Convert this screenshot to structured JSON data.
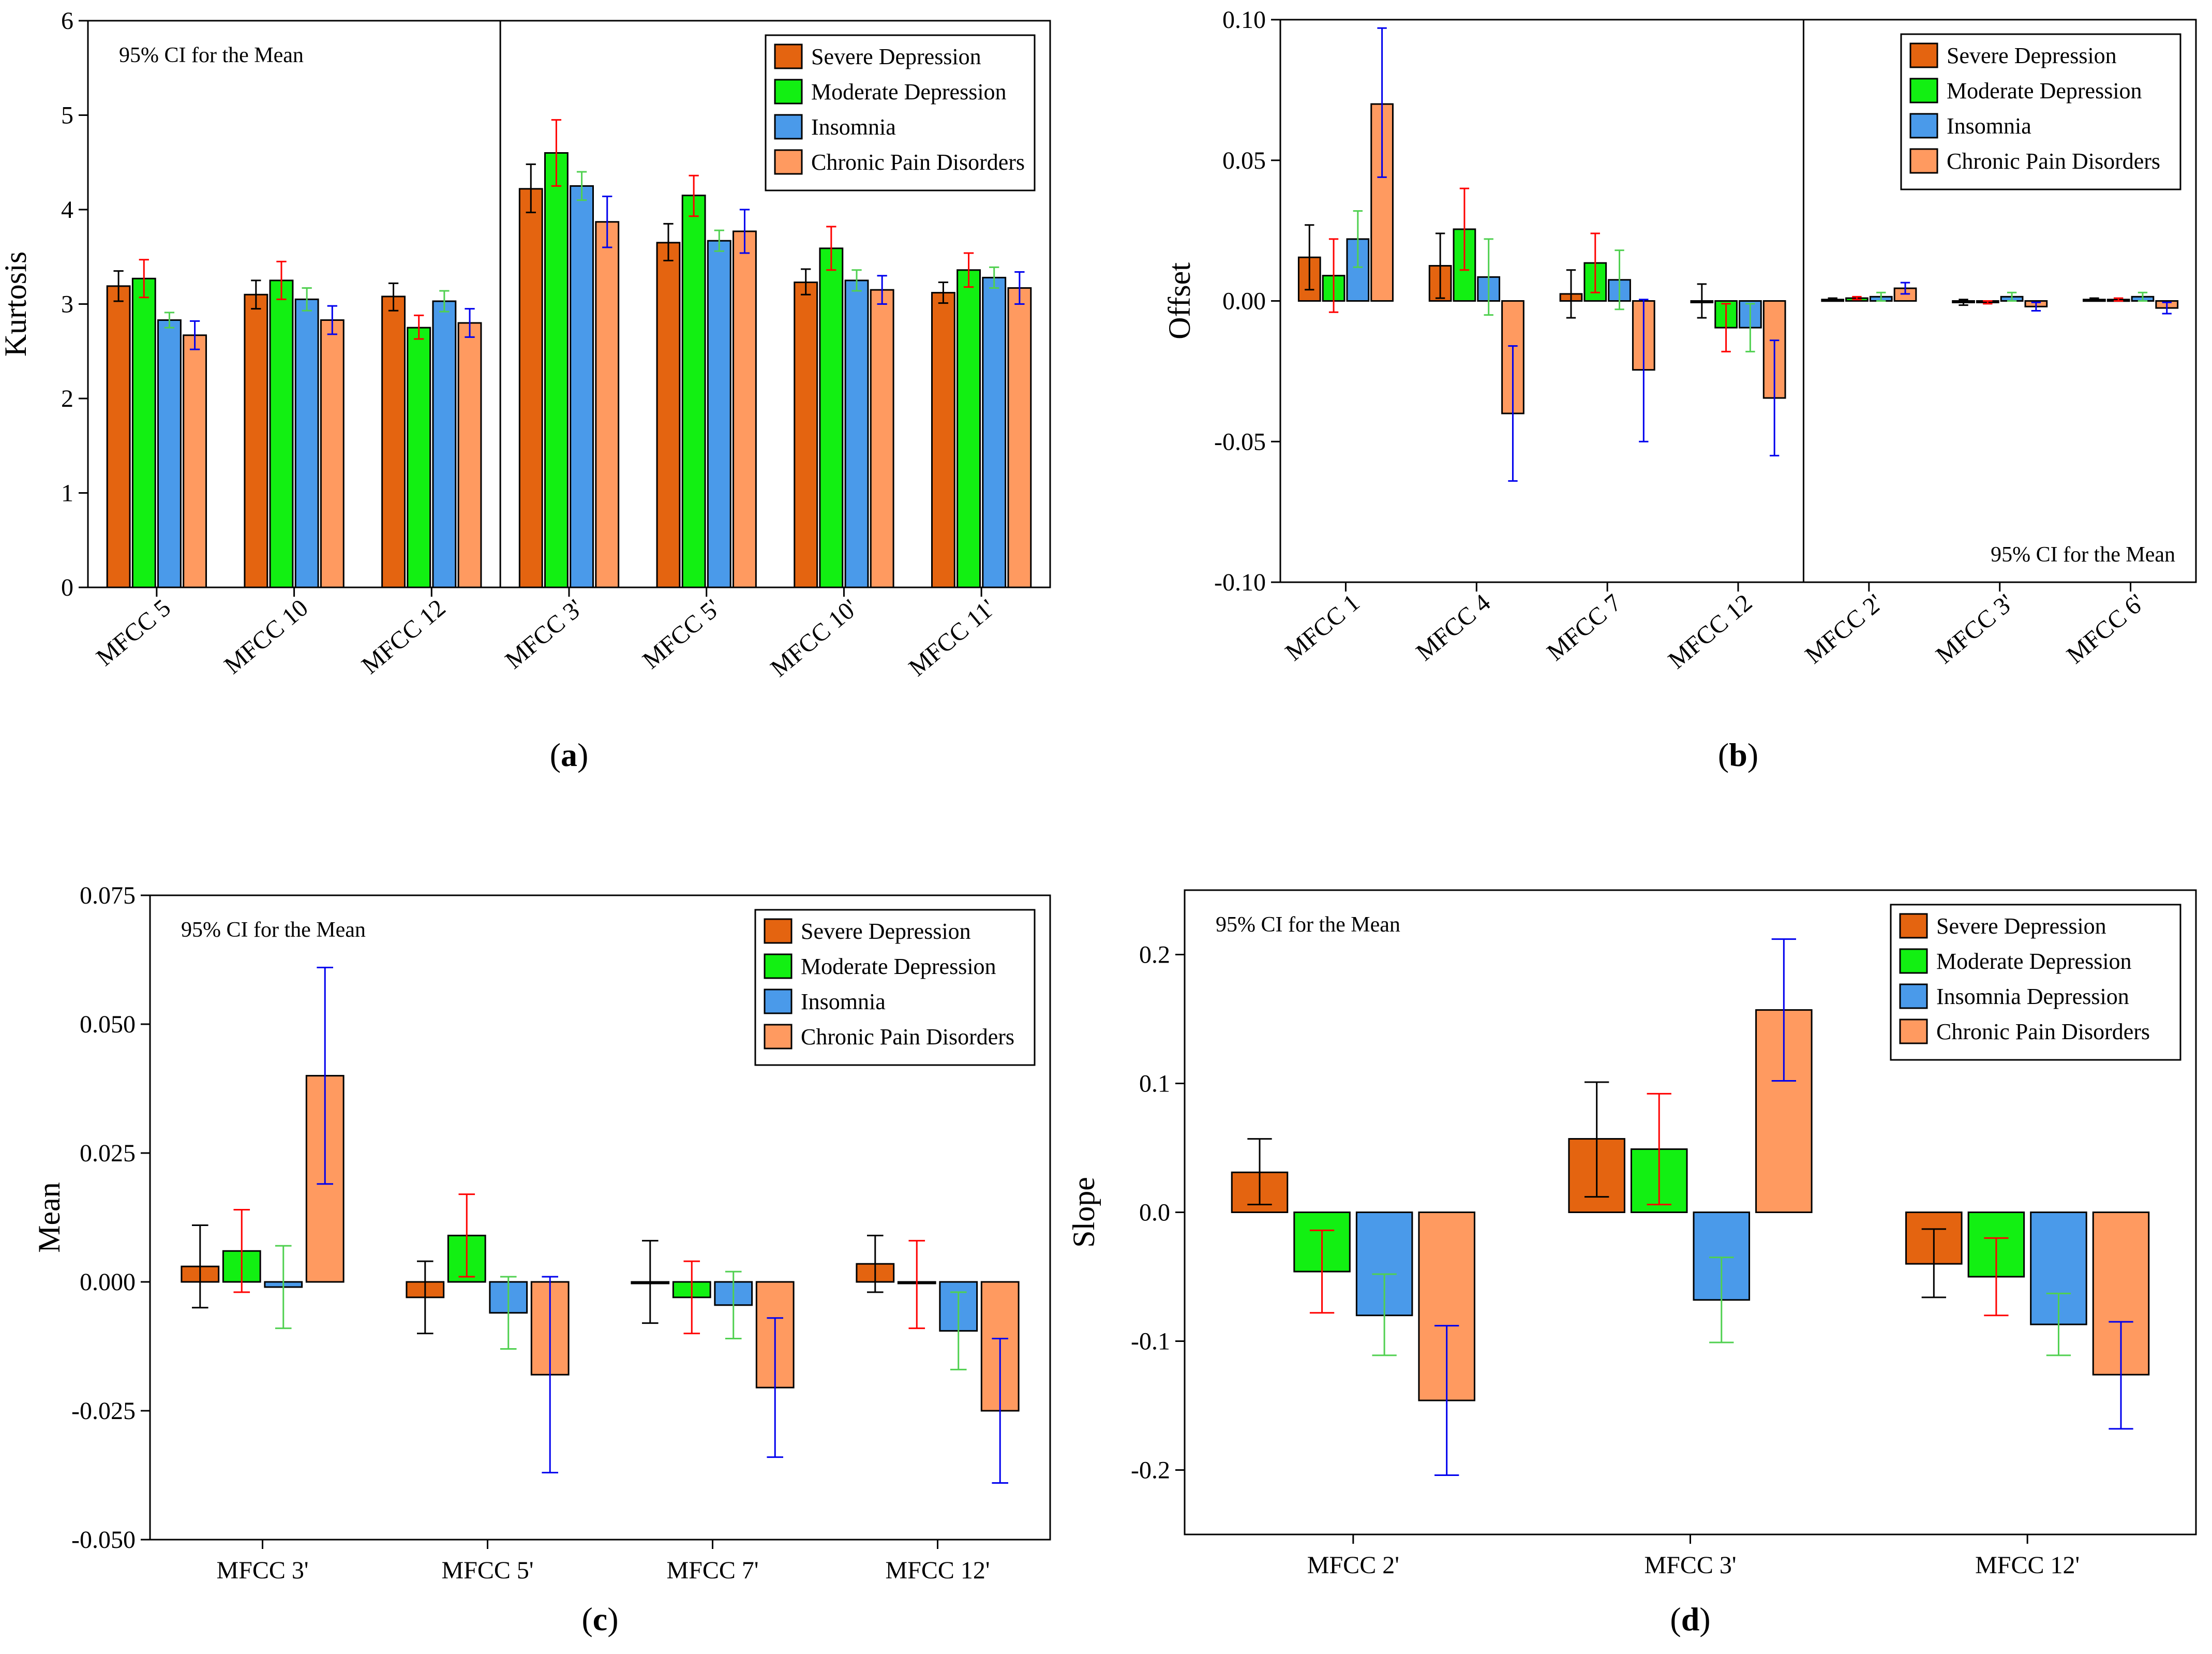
{
  "figure": {
    "panels": [
      {
        "id": "a",
        "label": "(a)",
        "label_letter": "a"
      },
      {
        "id": "b",
        "label": "(b)",
        "label_letter": "b"
      },
      {
        "id": "c",
        "label": "(c)",
        "label_letter": "c"
      },
      {
        "id": "d",
        "label": "(d)",
        "label_letter": "d"
      }
    ]
  },
  "chart_data": [
    {
      "id": "a",
      "type": "bar",
      "ylabel": "Kurtosis",
      "xlabel": "",
      "ylim": [
        0,
        6
      ],
      "yticks": [
        0,
        1,
        2,
        3,
        4,
        5,
        6
      ],
      "yticklabels": [
        "0",
        "1",
        "2",
        "3",
        "4",
        "5",
        "6"
      ],
      "note": "95% CI for the Mean",
      "legend_position": "top-right",
      "divider_after_category": 2,
      "categories": [
        "MFCC 5",
        "MFCC 10",
        "MFCC 12",
        "MFCC 3'",
        "MFCC 5'",
        "MFCC 10'",
        "MFCC 11'"
      ],
      "series": [
        {
          "name": "Severe Depression",
          "color": "#E46410",
          "err_color": "#000000",
          "values": [
            3.19,
            3.1,
            3.08,
            4.22,
            3.65,
            3.23,
            3.12
          ],
          "ci_low": [
            3.03,
            2.95,
            2.93,
            3.97,
            3.46,
            3.1,
            3.01
          ],
          "ci_high": [
            3.35,
            3.25,
            3.22,
            4.48,
            3.85,
            3.37,
            3.23
          ]
        },
        {
          "name": "Moderate Depression",
          "color": "#12F012",
          "err_color": "#FF0000",
          "values": [
            3.27,
            3.25,
            2.75,
            4.6,
            4.15,
            3.59,
            3.36
          ],
          "ci_low": [
            3.07,
            3.05,
            2.63,
            4.25,
            3.93,
            3.36,
            3.18
          ],
          "ci_high": [
            3.47,
            3.45,
            2.88,
            4.95,
            4.36,
            3.82,
            3.54
          ]
        },
        {
          "name": "Insomnia",
          "color": "#4A9AEA",
          "err_color": "#50D050",
          "values": [
            2.83,
            3.05,
            3.03,
            4.25,
            3.67,
            3.25,
            3.28
          ],
          "ci_low": [
            2.75,
            2.93,
            2.92,
            4.1,
            3.56,
            3.14,
            3.17
          ],
          "ci_high": [
            2.91,
            3.17,
            3.14,
            4.4,
            3.78,
            3.36,
            3.39
          ]
        },
        {
          "name": "Chronic Pain Disorders",
          "color": "#FF9A60",
          "err_color": "#0000EE",
          "values": [
            2.67,
            2.83,
            2.8,
            3.87,
            3.77,
            3.15,
            3.17
          ],
          "ci_low": [
            2.52,
            2.68,
            2.65,
            3.6,
            3.54,
            3.0,
            3.0
          ],
          "ci_high": [
            2.82,
            2.98,
            2.95,
            4.14,
            4.0,
            3.3,
            3.34
          ]
        }
      ]
    },
    {
      "id": "b",
      "type": "bar",
      "ylabel": "Offset",
      "xlabel": "",
      "ylim": [
        -0.1,
        0.1
      ],
      "yticks": [
        -0.1,
        -0.05,
        0.0,
        0.05,
        0.1
      ],
      "yticklabels": [
        "-0.10",
        "-0.05",
        "0.00",
        "0.05",
        "0.10"
      ],
      "note": "95% CI for the Mean",
      "legend_position": "top-right",
      "divider_after_category": 3,
      "categories": [
        "MFCC 1",
        "MFCC 4",
        "MFCC 7",
        "MFCC 12",
        "MFCC 2'",
        "MFCC 3'",
        "MFCC 6'"
      ],
      "series": [
        {
          "name": "Severe Depression",
          "color": "#E46410",
          "err_color": "#000000",
          "values": [
            0.0155,
            0.0125,
            0.0025,
            0.0,
            0.0005,
            -0.0005,
            0.0005
          ],
          "ci_low": [
            0.004,
            0.001,
            -0.006,
            -0.006,
            0.0,
            -0.0015,
            0.0
          ],
          "ci_high": [
            0.027,
            0.024,
            0.011,
            0.006,
            0.001,
            0.0005,
            0.001
          ]
        },
        {
          "name": "Moderate Depression",
          "color": "#12F012",
          "err_color": "#FF0000",
          "values": [
            0.009,
            0.0255,
            0.0135,
            -0.0095,
            0.001,
            -0.0005,
            0.0005
          ],
          "ci_low": [
            -0.004,
            0.011,
            0.003,
            -0.018,
            0.0005,
            -0.001,
            0.0
          ],
          "ci_high": [
            0.022,
            0.04,
            0.024,
            -0.001,
            0.0015,
            0.0,
            0.001
          ]
        },
        {
          "name": "Insomnia",
          "color": "#4A9AEA",
          "err_color": "#50D050",
          "values": [
            0.022,
            0.0085,
            0.0075,
            -0.0095,
            0.0015,
            0.0015,
            0.0015
          ],
          "ci_low": [
            0.012,
            -0.005,
            -0.003,
            -0.018,
            0.0,
            0.0,
            0.0
          ],
          "ci_high": [
            0.032,
            0.022,
            0.018,
            -0.001,
            0.003,
            0.003,
            0.003
          ]
        },
        {
          "name": "Chronic Pain Disorders",
          "color": "#FF9A60",
          "err_color": "#0000EE",
          "values": [
            0.07,
            -0.04,
            -0.0245,
            -0.0345,
            0.0045,
            -0.002,
            -0.0025
          ],
          "ci_low": [
            0.044,
            -0.064,
            -0.05,
            -0.055,
            0.0025,
            -0.0035,
            -0.0045
          ],
          "ci_high": [
            0.097,
            -0.016,
            0.0005,
            -0.014,
            0.0065,
            -0.0005,
            -0.0005
          ]
        }
      ]
    },
    {
      "id": "c",
      "type": "bar",
      "ylabel": "Mean",
      "xlabel": "",
      "ylim": [
        -0.05,
        0.075
      ],
      "yticks": [
        -0.05,
        -0.025,
        0.0,
        0.025,
        0.05,
        0.075
      ],
      "yticklabels": [
        "-0.050",
        "-0.025",
        "0.000",
        "0.025",
        "0.050",
        "0.075"
      ],
      "note": "95% CI for the Mean",
      "legend_position": "top-right",
      "divider_after_category": null,
      "categories": [
        "MFCC 3'",
        "MFCC 5'",
        "MFCC 7'",
        "MFCC 12'"
      ],
      "series": [
        {
          "name": "Severe Depression",
          "color": "#E46410",
          "err_color": "#000000",
          "values": [
            0.003,
            -0.003,
            0.0,
            0.0035
          ],
          "ci_low": [
            -0.005,
            -0.01,
            -0.008,
            -0.002
          ],
          "ci_high": [
            0.011,
            0.004,
            0.008,
            0.009
          ]
        },
        {
          "name": "Moderate Depression",
          "color": "#12F012",
          "err_color": "#FF0000",
          "values": [
            0.006,
            0.009,
            -0.003,
            0.0
          ],
          "ci_low": [
            -0.002,
            0.001,
            -0.01,
            -0.009
          ],
          "ci_high": [
            0.014,
            0.017,
            0.004,
            0.008
          ]
        },
        {
          "name": "Insomnia",
          "color": "#4A9AEA",
          "err_color": "#50D050",
          "values": [
            -0.001,
            -0.006,
            -0.0045,
            -0.0095
          ],
          "ci_low": [
            -0.009,
            -0.013,
            -0.011,
            -0.017
          ],
          "ci_high": [
            0.007,
            0.001,
            0.002,
            -0.002
          ]
        },
        {
          "name": "Chronic Pain Disorders",
          "color": "#FF9A60",
          "err_color": "#0000EE",
          "values": [
            0.04,
            -0.018,
            -0.0205,
            -0.025
          ],
          "ci_low": [
            0.019,
            -0.037,
            -0.034,
            -0.039
          ],
          "ci_high": [
            0.061,
            0.001,
            -0.007,
            -0.011
          ]
        }
      ]
    },
    {
      "id": "d",
      "type": "bar",
      "ylabel": "Slope",
      "xlabel": "",
      "ylim": [
        -0.25,
        0.25
      ],
      "yticks": [
        -0.2,
        -0.1,
        0.0,
        0.1,
        0.2
      ],
      "yticklabels": [
        "-0.2",
        "-0.1",
        "0.0",
        "0.1",
        "0.2"
      ],
      "note": "95% CI for the Mean",
      "legend_position": "top-right",
      "divider_after_category": null,
      "categories": [
        "MFCC 2'",
        "MFCC 3'",
        "MFCC 12'"
      ],
      "series": [
        {
          "name": "Severe Depression",
          "color": "#E46410",
          "err_color": "#000000",
          "values": [
            0.031,
            0.057,
            -0.04
          ],
          "ci_low": [
            0.006,
            0.012,
            -0.066
          ],
          "ci_high": [
            0.057,
            0.101,
            -0.013
          ]
        },
        {
          "name": "Moderate Depression",
          "color": "#12F012",
          "err_color": "#FF0000",
          "values": [
            -0.046,
            0.049,
            -0.05
          ],
          "ci_low": [
            -0.078,
            0.006,
            -0.08
          ],
          "ci_high": [
            -0.014,
            0.092,
            -0.02
          ]
        },
        {
          "name": "Insomnia Depression",
          "color": "#4A9AEA",
          "err_color": "#50D050",
          "values": [
            -0.08,
            -0.068,
            -0.087
          ],
          "ci_low": [
            -0.111,
            -0.101,
            -0.111
          ],
          "ci_high": [
            -0.048,
            -0.035,
            -0.063
          ]
        },
        {
          "name": "Chronic Pain Disorders",
          "color": "#FF9A60",
          "err_color": "#0000EE",
          "values": [
            -0.146,
            0.157,
            -0.126
          ],
          "ci_low": [
            -0.204,
            0.102,
            -0.168
          ],
          "ci_high": [
            -0.088,
            0.212,
            -0.085
          ]
        }
      ]
    }
  ]
}
